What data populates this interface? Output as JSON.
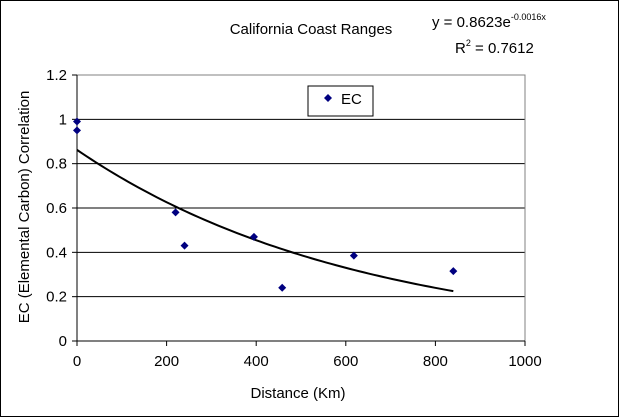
{
  "chart_data": {
    "type": "scatter",
    "title": "California Coast Ranges",
    "xlabel": "Distance (Km)",
    "ylabel": "EC (Elemental Carbon) Correlation",
    "xlim": [
      0,
      1000
    ],
    "ylim": [
      0,
      1.2
    ],
    "xticks": [
      0,
      200,
      400,
      600,
      800,
      1000
    ],
    "yticks": [
      0,
      0.2,
      0.4,
      0.6,
      0.8,
      1,
      1.2
    ],
    "xtick_labels": [
      "0",
      "200",
      "400",
      "600",
      "800",
      "1000"
    ],
    "ytick_labels": [
      "0",
      "0.2",
      "0.4",
      "0.6",
      "0.8",
      "1",
      "1.2"
    ],
    "grid": "horizontal",
    "legend": "top-center",
    "series": [
      {
        "name": "EC",
        "marker": "diamond",
        "color": "#000080",
        "x": [
          0,
          0,
          220,
          240,
          395,
          458,
          618,
          840
        ],
        "y": [
          0.99,
          0.95,
          0.58,
          0.43,
          0.47,
          0.24,
          0.385,
          0.315
        ]
      }
    ],
    "trendline": {
      "type": "exponential",
      "a": 0.8623,
      "b": -0.0016,
      "x_range": [
        0,
        840
      ],
      "color": "#000000"
    },
    "equation": {
      "prefix": "y = 0.8623e",
      "exponent": "-0.0016x",
      "r2_prefix": "R",
      "r2_sup": "2",
      "r2_suffix": " = 0.7612"
    }
  }
}
